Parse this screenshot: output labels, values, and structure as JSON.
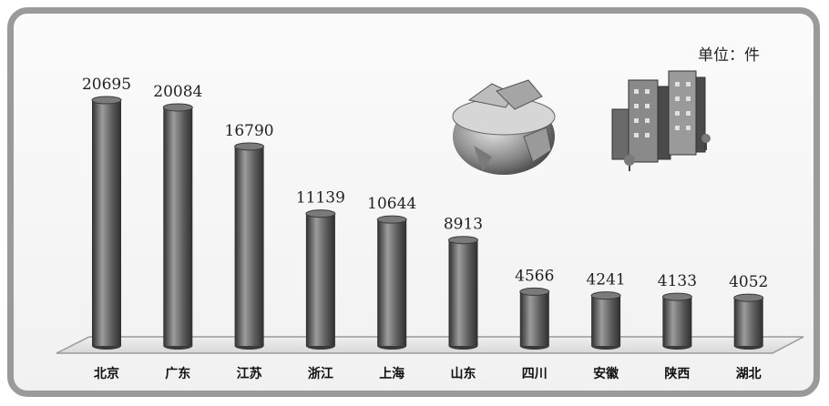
{
  "chart_data": {
    "type": "bar",
    "unit_label": "单位：件",
    "categories": [
      "北京",
      "广东",
      "江苏",
      "浙江",
      "上海",
      "山东",
      "四川",
      "安徽",
      "陕西",
      "湖北"
    ],
    "values": [
      20695,
      20084,
      16790,
      11139,
      10644,
      8913,
      4566,
      4241,
      4133,
      4052
    ],
    "value_labels": [
      "20695",
      "20084",
      "16790",
      "11139",
      "10644",
      "8913",
      "4566",
      "4241",
      "4133",
      "4052"
    ],
    "ylim": [
      0,
      22000
    ],
    "legend": "none",
    "grid": false,
    "colors": {
      "bar": "#5a5a5a",
      "bar_highlight": "#9c9c9c",
      "bar_shadow": "#2e2e2e",
      "floor": "#e6e6e6",
      "frame": "#9a9a9a"
    },
    "decorations": [
      "globe-money-icon",
      "buildings-icon"
    ]
  }
}
